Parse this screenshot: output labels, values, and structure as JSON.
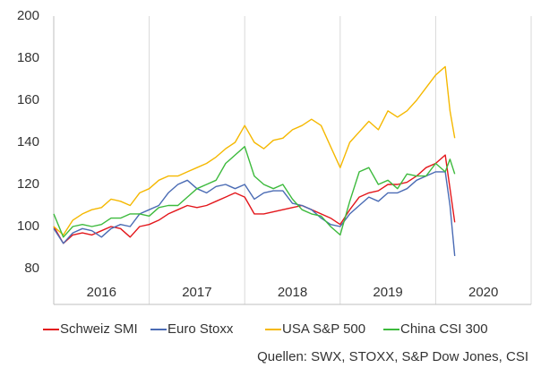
{
  "chart_data": {
    "type": "line",
    "x": [
      2016.0,
      2016.1,
      2016.2,
      2016.3,
      2016.4,
      2016.5,
      2016.6,
      2016.7,
      2016.8,
      2016.9,
      2017.0,
      2017.1,
      2017.2,
      2017.3,
      2017.4,
      2017.5,
      2017.6,
      2017.7,
      2017.8,
      2017.9,
      2018.0,
      2018.1,
      2018.2,
      2018.3,
      2018.4,
      2018.5,
      2018.6,
      2018.7,
      2018.8,
      2018.9,
      2019.0,
      2019.1,
      2019.2,
      2019.3,
      2019.4,
      2019.5,
      2019.6,
      2019.7,
      2019.8,
      2019.9,
      2020.0,
      2020.1,
      2020.15,
      2020.2
    ],
    "series": [
      {
        "name": "Schweiz SMI",
        "color": "#e3161b",
        "values": [
          100,
          92,
          96,
          97,
          96,
          98,
          100,
          99,
          95,
          100,
          101,
          103,
          106,
          108,
          110,
          109,
          110,
          112,
          114,
          116,
          114,
          106,
          106,
          107,
          108,
          109,
          110,
          108,
          106,
          104,
          101,
          108,
          114,
          116,
          117,
          120,
          120,
          121,
          124,
          128,
          130,
          134,
          118,
          102
        ]
      },
      {
        "name": "Euro Stoxx",
        "color": "#4a6bb4",
        "values": [
          99,
          92,
          97,
          99,
          98,
          95,
          99,
          101,
          100,
          106,
          108,
          110,
          116,
          120,
          122,
          118,
          116,
          119,
          120,
          118,
          120,
          113,
          116,
          117,
          117,
          111,
          110,
          108,
          104,
          101,
          100,
          106,
          110,
          114,
          112,
          116,
          116,
          118,
          122,
          124,
          126,
          126,
          110,
          86
        ]
      },
      {
        "name": "USA S&P 500",
        "color": "#f5b800",
        "values": [
          100,
          96,
          103,
          106,
          108,
          109,
          113,
          112,
          110,
          116,
          118,
          122,
          124,
          124,
          126,
          128,
          130,
          133,
          137,
          140,
          148,
          140,
          137,
          141,
          142,
          146,
          148,
          151,
          148,
          138,
          128,
          140,
          145,
          150,
          146,
          155,
          152,
          155,
          160,
          166,
          172,
          176,
          155,
          142
        ]
      },
      {
        "name": "China CSI 300",
        "color": "#3dba3d",
        "values": [
          106,
          95,
          100,
          101,
          100,
          101,
          104,
          104,
          106,
          106,
          105,
          109,
          110,
          110,
          114,
          118,
          120,
          122,
          130,
          134,
          138,
          124,
          120,
          118,
          120,
          113,
          108,
          106,
          105,
          100,
          96,
          112,
          126,
          128,
          120,
          122,
          118,
          125,
          124,
          124,
          130,
          126,
          132,
          125
        ]
      }
    ],
    "xlim": [
      2016,
      2021
    ],
    "xticks": [
      {
        "value": 2016.5,
        "label": "2016"
      },
      {
        "value": 2017.5,
        "label": "2017"
      },
      {
        "value": 2018.5,
        "label": "2018"
      },
      {
        "value": 2019.5,
        "label": "2019"
      },
      {
        "value": 2020.5,
        "label": "2020"
      }
    ],
    "ylim": [
      80,
      200
    ],
    "yticks": [
      80,
      100,
      120,
      140,
      160,
      180,
      200
    ],
    "source": "Quellen: SWX, STOXX, S&P Dow Jones, CSI"
  }
}
